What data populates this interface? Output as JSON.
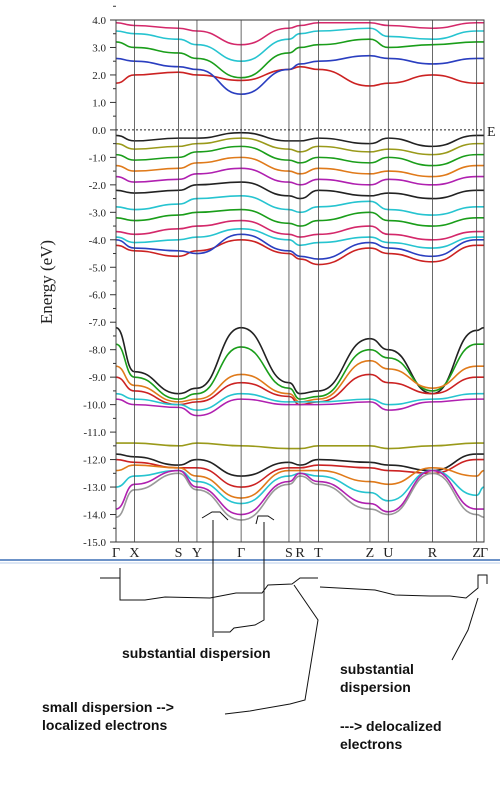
{
  "chart_data": {
    "type": "line",
    "title": "",
    "ylabel": "Energy (eV)",
    "xlabel": "",
    "ylim": [
      -15.0,
      4.0
    ],
    "yticks": [
      "4.0",
      "3.0",
      "2.0",
      "1.0",
      "0.0",
      "-1.0",
      "-2.0",
      "-3.0",
      "-4.0",
      "-5.0",
      "-6.0",
      "-7.0",
      "-8.0",
      "-9.0",
      "-10.0",
      "-11.0",
      "-12.0",
      "-13.0",
      "-14.0",
      "-15.0"
    ],
    "kpoints": [
      {
        "label": "Γ",
        "pos": 0.0
      },
      {
        "label": "X",
        "pos": 0.05
      },
      {
        "label": "S",
        "pos": 0.17
      },
      {
        "label": "Y",
        "pos": 0.22
      },
      {
        "label": "Γ",
        "pos": 0.34
      },
      {
        "label": "S",
        "pos": 0.47
      },
      {
        "label": "R",
        "pos": 0.5
      },
      {
        "label": "T",
        "pos": 0.55
      },
      {
        "label": "Z",
        "pos": 0.69
      },
      {
        "label": "U",
        "pos": 0.74
      },
      {
        "label": "R",
        "pos": 0.86
      },
      {
        "label": "Z",
        "pos": 0.98
      },
      {
        "label": "Γ",
        "pos": 1.0
      }
    ],
    "fermi_label": "E",
    "fermi_level": 0.0,
    "band_colors": [
      "#cc2222",
      "#1a9e1a",
      "#d4286a",
      "#e07a1a",
      "#26c4d0",
      "#222222",
      "#9a9a1a",
      "#2a3ec0",
      "#b020b0",
      "#999999"
    ],
    "bands": [
      {
        "color": "#cc2222",
        "y": [
          1.7,
          2.0,
          2.1,
          2.0,
          1.8,
          2.2,
          2.3,
          2.2,
          1.6,
          1.7,
          2.0,
          1.7,
          1.7
        ]
      },
      {
        "color": "#2a3ec0",
        "y": [
          2.6,
          2.5,
          2.3,
          2.2,
          1.3,
          2.2,
          2.4,
          2.5,
          2.7,
          2.6,
          2.4,
          2.6,
          2.6
        ]
      },
      {
        "color": "#1a9e1a",
        "y": [
          3.2,
          3.0,
          2.8,
          2.6,
          1.9,
          2.8,
          3.0,
          3.1,
          3.3,
          3.0,
          3.1,
          3.2,
          3.2
        ]
      },
      {
        "color": "#26c4d0",
        "y": [
          3.6,
          3.5,
          3.3,
          3.1,
          2.5,
          3.3,
          3.5,
          3.6,
          3.7,
          3.4,
          3.3,
          3.6,
          3.6
        ]
      },
      {
        "color": "#d4286a",
        "y": [
          3.9,
          3.8,
          3.7,
          3.6,
          3.1,
          3.7,
          3.8,
          3.9,
          3.9,
          3.8,
          3.7,
          3.9,
          3.9
        ]
      },
      {
        "color": "#222222",
        "y": [
          -0.2,
          -0.4,
          -0.3,
          -0.3,
          -0.1,
          -0.4,
          -0.4,
          -0.3,
          -0.5,
          -0.3,
          -0.6,
          -0.2,
          -0.2
        ]
      },
      {
        "color": "#9a9a1a",
        "y": [
          -0.5,
          -0.7,
          -0.6,
          -0.5,
          -0.3,
          -0.7,
          -0.8,
          -0.6,
          -0.8,
          -0.7,
          -0.9,
          -0.5,
          -0.5
        ]
      },
      {
        "color": "#1a9e1a",
        "y": [
          -0.9,
          -1.1,
          -1.0,
          -0.8,
          -0.6,
          -1.1,
          -1.2,
          -1.0,
          -1.2,
          -1.0,
          -1.3,
          -0.9,
          -0.9
        ]
      },
      {
        "color": "#e07a1a",
        "y": [
          -1.3,
          -1.5,
          -1.4,
          -1.2,
          -1.0,
          -1.5,
          -1.6,
          -1.4,
          -1.6,
          -1.5,
          -1.7,
          -1.3,
          -1.3
        ]
      },
      {
        "color": "#b020b0",
        "y": [
          -1.7,
          -1.9,
          -1.8,
          -1.6,
          -1.4,
          -1.9,
          -2.0,
          -1.8,
          -2.0,
          -1.8,
          -2.0,
          -1.7,
          -1.7
        ]
      },
      {
        "color": "#222222",
        "y": [
          -2.2,
          -2.3,
          -2.2,
          -2.0,
          -1.9,
          -2.4,
          -2.5,
          -2.2,
          -2.4,
          -2.3,
          -2.5,
          -2.2,
          -2.2
        ]
      },
      {
        "color": "#26c4d0",
        "y": [
          -2.8,
          -2.9,
          -2.7,
          -2.5,
          -2.4,
          -2.9,
          -3.0,
          -2.8,
          -2.6,
          -2.9,
          -3.1,
          -2.8,
          -2.8
        ]
      },
      {
        "color": "#1a9e1a",
        "y": [
          -3.2,
          -3.3,
          -3.1,
          -3.0,
          -2.9,
          -3.4,
          -3.5,
          -3.3,
          -3.0,
          -3.3,
          -3.5,
          -3.2,
          -3.2
        ]
      },
      {
        "color": "#d4286a",
        "y": [
          -3.7,
          -3.8,
          -3.6,
          -3.5,
          -3.3,
          -3.8,
          -3.9,
          -3.8,
          -3.5,
          -3.8,
          -4.0,
          -3.7,
          -3.7
        ]
      },
      {
        "color": "#26c4d0",
        "y": [
          -3.9,
          -4.1,
          -4.0,
          -3.9,
          -3.6,
          -4.0,
          -4.2,
          -4.1,
          -3.9,
          -4.1,
          -4.3,
          -3.9,
          -3.9
        ]
      },
      {
        "color": "#cc2222",
        "y": [
          -4.2,
          -4.4,
          -4.6,
          -4.4,
          -4.0,
          -4.5,
          -4.7,
          -4.9,
          -4.3,
          -4.5,
          -4.8,
          -4.2,
          -4.2
        ]
      },
      {
        "color": "#2a3ec0",
        "y": [
          -4.0,
          -4.3,
          -4.4,
          -4.5,
          -3.8,
          -4.4,
          -4.6,
          -4.7,
          -4.1,
          -4.3,
          -4.6,
          -4.0,
          -4.0
        ]
      },
      {
        "color": "#222222",
        "y": [
          -7.2,
          -8.8,
          -9.6,
          -9.4,
          -7.2,
          -9.2,
          -9.6,
          -9.5,
          -7.6,
          -8.0,
          -9.6,
          -7.3,
          -7.2
        ]
      },
      {
        "color": "#1a9e1a",
        "y": [
          -7.8,
          -9.0,
          -9.8,
          -9.6,
          -7.9,
          -9.4,
          -9.8,
          -9.7,
          -8.0,
          -8.3,
          -9.5,
          -7.8,
          -7.8
        ]
      },
      {
        "color": "#e07a1a",
        "y": [
          -8.6,
          -9.3,
          -9.9,
          -9.8,
          -8.9,
          -9.6,
          -9.9,
          -9.8,
          -8.4,
          -8.7,
          -9.4,
          -8.6,
          -8.6
        ]
      },
      {
        "color": "#cc2222",
        "y": [
          -9.0,
          -9.5,
          -10.0,
          -9.9,
          -9.2,
          -9.7,
          -10.0,
          -9.9,
          -8.9,
          -9.2,
          -9.6,
          -9.0,
          -9.0
        ]
      },
      {
        "color": "#26c4d0",
        "y": [
          -9.6,
          -9.8,
          -10.0,
          -10.2,
          -9.6,
          -9.9,
          -9.9,
          -9.9,
          -9.8,
          -10.0,
          -9.8,
          -9.6,
          -9.6
        ]
      },
      {
        "color": "#b020b0",
        "y": [
          -9.8,
          -10.0,
          -10.1,
          -10.4,
          -9.8,
          -10.0,
          -10.0,
          -10.0,
          -9.9,
          -10.2,
          -9.9,
          -9.8,
          -9.8
        ]
      },
      {
        "color": "#9a9a1a",
        "y": [
          -11.4,
          -11.4,
          -11.5,
          -11.4,
          -11.5,
          -11.6,
          -11.6,
          -11.5,
          -11.5,
          -11.6,
          -11.5,
          -11.4,
          -11.4
        ]
      },
      {
        "color": "#222222",
        "y": [
          -11.8,
          -11.9,
          -12.2,
          -12.0,
          -12.6,
          -12.1,
          -12.2,
          -12.0,
          -12.1,
          -12.2,
          -12.4,
          -11.8,
          -11.8
        ]
      },
      {
        "color": "#cc2222",
        "y": [
          -12.0,
          -12.1,
          -12.3,
          -12.3,
          -13.0,
          -12.3,
          -12.3,
          -12.2,
          -12.3,
          -12.4,
          -12.5,
          -12.0,
          -12.0
        ]
      },
      {
        "color": "#e07a1a",
        "y": [
          -12.4,
          -12.2,
          -12.3,
          -12.6,
          -13.4,
          -12.4,
          -12.4,
          -12.4,
          -12.8,
          -12.9,
          -12.3,
          -12.6,
          -12.4
        ]
      },
      {
        "color": "#26c4d0",
        "y": [
          -13.0,
          -12.6,
          -12.4,
          -12.8,
          -13.6,
          -12.6,
          -12.5,
          -12.6,
          -13.2,
          -13.5,
          -12.4,
          -13.3,
          -13.0
        ]
      },
      {
        "color": "#b020b0",
        "y": [
          -13.8,
          -12.9,
          -12.4,
          -13.0,
          -14.0,
          -12.8,
          -12.5,
          -12.8,
          -13.6,
          -13.9,
          -12.4,
          -13.8,
          -13.8
        ]
      },
      {
        "color": "#999999",
        "y": [
          -14.1,
          -13.1,
          -12.5,
          -13.1,
          -14.2,
          -12.9,
          -12.6,
          -12.9,
          -13.8,
          -14.0,
          -12.5,
          -14.0,
          -14.1
        ]
      }
    ]
  },
  "annotations": {
    "substantial_dispersion_1": "substantial dispersion",
    "small_dispersion": "small dispersion  -->\nlocalized electrons",
    "substantial_dispersion_2": "substantial\ndispersion",
    "delocalized": "---> delocalized\nelectrons"
  }
}
